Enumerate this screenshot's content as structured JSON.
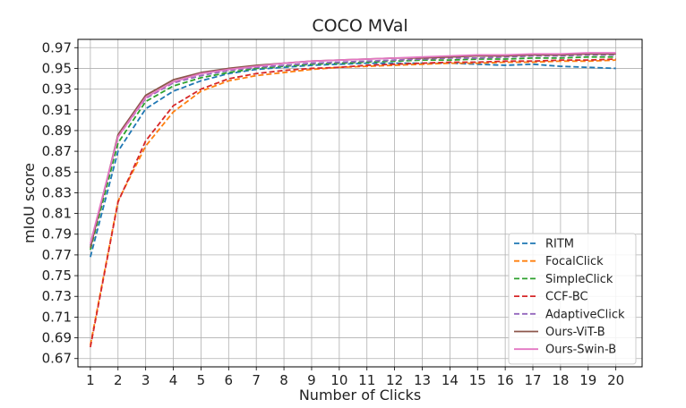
{
  "chart_data": {
    "type": "line",
    "title": "COCO MVal",
    "xlabel": "Number of Clicks",
    "ylabel": "mIoU score",
    "x": [
      1,
      2,
      3,
      4,
      5,
      6,
      7,
      8,
      9,
      10,
      11,
      12,
      13,
      14,
      15,
      16,
      17,
      18,
      19,
      20
    ],
    "xlim": [
      0.55,
      20.95
    ],
    "ylim": [
      0.662,
      0.978
    ],
    "yticks": [
      0.67,
      0.69,
      0.71,
      0.73,
      0.75,
      0.77,
      0.79,
      0.81,
      0.83,
      0.85,
      0.87,
      0.89,
      0.91,
      0.93,
      0.95,
      0.97
    ],
    "grid": true,
    "legend_position": "lower-right",
    "series": [
      {
        "name": "RITM",
        "color": "#1f77b4",
        "dashed": true,
        "values": [
          0.768,
          0.87,
          0.911,
          0.928,
          0.938,
          0.945,
          0.949,
          0.951,
          0.953,
          0.954,
          0.955,
          0.955,
          0.955,
          0.955,
          0.954,
          0.953,
          0.954,
          0.952,
          0.951,
          0.95
        ]
      },
      {
        "name": "FocalClick",
        "color": "#ff7f0e",
        "dashed": true,
        "values": [
          0.683,
          0.822,
          0.875,
          0.908,
          0.928,
          0.938,
          0.943,
          0.946,
          0.949,
          0.951,
          0.952,
          0.953,
          0.954,
          0.955,
          0.955,
          0.956,
          0.956,
          0.957,
          0.957,
          0.958
        ]
      },
      {
        "name": "SimpleClick",
        "color": "#2ca02c",
        "dashed": true,
        "values": [
          0.775,
          0.878,
          0.918,
          0.933,
          0.941,
          0.946,
          0.95,
          0.952,
          0.954,
          0.955,
          0.956,
          0.957,
          0.958,
          0.958,
          0.959,
          0.959,
          0.96,
          0.96,
          0.961,
          0.961
        ]
      },
      {
        "name": "CCF-BC",
        "color": "#d62728",
        "dashed": true,
        "values": [
          0.681,
          0.821,
          0.88,
          0.914,
          0.93,
          0.94,
          0.945,
          0.948,
          0.95,
          0.951,
          0.953,
          0.954,
          0.955,
          0.956,
          0.956,
          0.957,
          0.957,
          0.958,
          0.958,
          0.959
        ]
      },
      {
        "name": "AdaptiveClick",
        "color": "#9467bd",
        "dashed": true,
        "values": [
          0.779,
          0.884,
          0.921,
          0.936,
          0.943,
          0.948,
          0.951,
          0.953,
          0.955,
          0.956,
          0.957,
          0.958,
          0.959,
          0.96,
          0.96,
          0.961,
          0.962,
          0.962,
          0.963,
          0.963
        ]
      },
      {
        "name": "Ours-ViT-B",
        "color": "#8c564b",
        "dashed": false,
        "values": [
          0.777,
          0.886,
          0.924,
          0.939,
          0.946,
          0.95,
          0.953,
          0.955,
          0.957,
          0.958,
          0.959,
          0.96,
          0.96,
          0.961,
          0.962,
          0.962,
          0.963,
          0.963,
          0.964,
          0.964
        ]
      },
      {
        "name": "Ours-Swin-B",
        "color": "#e377c2",
        "dashed": false,
        "values": [
          0.781,
          0.884,
          0.922,
          0.937,
          0.945,
          0.949,
          0.952,
          0.955,
          0.957,
          0.958,
          0.959,
          0.96,
          0.961,
          0.962,
          0.963,
          0.963,
          0.964,
          0.964,
          0.965,
          0.965
        ]
      }
    ]
  }
}
